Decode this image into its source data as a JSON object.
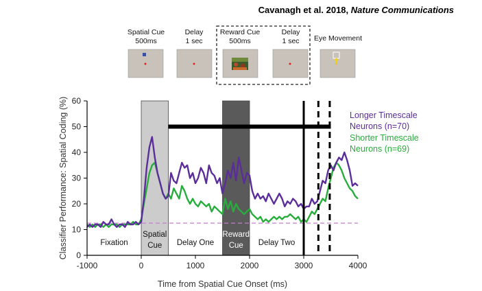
{
  "citation": {
    "authors": "Cavanagh et al. 2018, ",
    "journal": "Nature Communications"
  },
  "task_panels": [
    {
      "line1": "Spatial Cue",
      "line2": "500ms",
      "icon": "blue-square-cue"
    },
    {
      "line1": "Delay",
      "line2": "1 sec",
      "icon": "fixation-dot"
    },
    {
      "line1": "Reward Cue",
      "line2": "500ms",
      "icon": "reward-image"
    },
    {
      "line1": "Delay",
      "line2": "1 sec",
      "icon": "fixation-dot"
    },
    {
      "line1": "Eye Movement",
      "line2": "",
      "icon": "saccade-target"
    }
  ],
  "colors": {
    "longer": "#5b2d9a",
    "shorter": "#27ad3b",
    "chance": "#c77bd1",
    "spatial_cue_box": "#cccccc",
    "reward_cue_box": "#5a5a5a",
    "panel_bg": "#c9c2bb"
  },
  "chart_data": {
    "type": "line",
    "title": "",
    "xlabel": "Time from Spatial Cue Onset (ms)",
    "ylabel": "Classifier Performance: Spatial Coding (%)",
    "xlim": [
      -1000,
      4000
    ],
    "ylim": [
      0,
      60
    ],
    "xticks": [
      -1000,
      0,
      1000,
      2000,
      3000,
      4000
    ],
    "yticks": [
      0,
      10,
      20,
      30,
      40,
      50,
      60
    ],
    "grid": false,
    "legend_position": "top-right",
    "chance_level": 12.5,
    "significance_bar": {
      "x_start": 500,
      "x_end": 3500,
      "y": 50
    },
    "event_lines": [
      {
        "x": 3000,
        "style": "solid"
      },
      {
        "x": 3270,
        "style": "dashed"
      },
      {
        "x": 3480,
        "style": "dashed"
      }
    ],
    "epochs": [
      {
        "label_line1": "Fixation",
        "label_line2": "",
        "x_start": -1000,
        "x_end": 0,
        "shaded": false
      },
      {
        "label_line1": "Spatial",
        "label_line2": "Cue",
        "x_start": 0,
        "x_end": 500,
        "shaded": true
      },
      {
        "label_line1": "Delay One",
        "label_line2": "",
        "x_start": 500,
        "x_end": 1500,
        "shaded": false
      },
      {
        "label_line1": "Reward",
        "label_line2": "Cue",
        "x_start": 1500,
        "x_end": 2000,
        "shaded": true
      },
      {
        "label_line1": "Delay Two",
        "label_line2": "",
        "x_start": 2000,
        "x_end": 3000,
        "shaded": false
      }
    ],
    "series": [
      {
        "name": "Longer Timescale Neurons (n=70)",
        "legend_line1": "Longer Timescale",
        "legend_line2": "Neurons (n=70)",
        "x": [
          -1000,
          -950,
          -900,
          -850,
          -800,
          -750,
          -700,
          -650,
          -600,
          -550,
          -500,
          -450,
          -400,
          -350,
          -300,
          -250,
          -200,
          -150,
          -100,
          -50,
          0,
          50,
          100,
          150,
          200,
          250,
          300,
          350,
          400,
          450,
          500,
          550,
          600,
          650,
          700,
          750,
          800,
          850,
          900,
          950,
          1000,
          1050,
          1100,
          1150,
          1200,
          1250,
          1300,
          1350,
          1400,
          1450,
          1500,
          1550,
          1600,
          1650,
          1700,
          1750,
          1800,
          1850,
          1900,
          1950,
          2000,
          2050,
          2100,
          2150,
          2200,
          2250,
          2300,
          2350,
          2400,
          2450,
          2500,
          2550,
          2600,
          2650,
          2700,
          2750,
          2800,
          2850,
          2900,
          2950,
          3000,
          3050,
          3100,
          3150,
          3200,
          3250,
          3300,
          3350,
          3400,
          3450,
          3500,
          3550,
          3600,
          3650,
          3700,
          3750,
          3800,
          3850,
          3900,
          3950,
          4000
        ],
        "values": [
          11,
          12,
          11,
          12,
          12,
          11,
          13,
          12,
          12,
          14,
          12,
          11,
          12,
          12,
          11,
          13,
          12,
          12,
          13,
          12,
          13,
          22,
          34,
          42,
          46,
          38,
          32,
          28,
          24,
          22,
          23,
          32,
          29,
          28,
          32,
          36,
          34,
          35,
          30,
          32,
          28,
          30,
          34,
          32,
          28,
          35,
          32,
          31,
          28,
          30,
          24,
          28,
          33,
          30,
          36,
          29,
          38,
          33,
          28,
          32,
          31,
          25,
          22,
          24,
          22,
          23,
          21,
          24,
          22,
          20,
          22,
          24,
          22,
          19,
          21,
          20,
          22,
          21,
          19,
          20,
          18,
          19,
          19,
          22,
          20,
          21,
          25,
          29,
          28,
          33,
          35,
          33,
          36,
          38,
          37,
          40,
          37,
          33,
          27,
          28,
          27
        ]
      },
      {
        "name": "Shorter Timescale Neurons (n=69)",
        "legend_line1": "Shorter Timescale",
        "legend_line2": "Neurons (n=69)",
        "x": [
          -1000,
          -950,
          -900,
          -850,
          -800,
          -750,
          -700,
          -650,
          -600,
          -550,
          -500,
          -450,
          -400,
          -350,
          -300,
          -250,
          -200,
          -150,
          -100,
          -50,
          0,
          50,
          100,
          150,
          200,
          250,
          300,
          350,
          400,
          450,
          500,
          550,
          600,
          650,
          700,
          750,
          800,
          850,
          900,
          950,
          1000,
          1050,
          1100,
          1150,
          1200,
          1250,
          1300,
          1350,
          1400,
          1450,
          1500,
          1550,
          1600,
          1650,
          1700,
          1750,
          1800,
          1850,
          1900,
          1950,
          2000,
          2050,
          2100,
          2150,
          2200,
          2250,
          2300,
          2350,
          2400,
          2450,
          2500,
          2550,
          2600,
          2650,
          2700,
          2750,
          2800,
          2850,
          2900,
          2950,
          3000,
          3050,
          3100,
          3150,
          3200,
          3250,
          3300,
          3350,
          3400,
          3450,
          3500,
          3550,
          3600,
          3650,
          3700,
          3750,
          3800,
          3850,
          3900,
          3950,
          4000
        ],
        "values": [
          12,
          11,
          12,
          11,
          12,
          12,
          11,
          12,
          11,
          12,
          12,
          12,
          11,
          12,
          12,
          12,
          12,
          13,
          12,
          12,
          14,
          20,
          26,
          32,
          35,
          36,
          32,
          28,
          24,
          22,
          24,
          22,
          26,
          24,
          22,
          27,
          25,
          22,
          20,
          22,
          20,
          19,
          21,
          20,
          19,
          20,
          17,
          19,
          18,
          17,
          16,
          22,
          18,
          21,
          17,
          20,
          18,
          17,
          16,
          17,
          18,
          16,
          15,
          14,
          15,
          13,
          14,
          13,
          14,
          15,
          14,
          15,
          14,
          15,
          15,
          16,
          15,
          14,
          15,
          13,
          14,
          13,
          15,
          17,
          16,
          18,
          20,
          22,
          21,
          26,
          30,
          34,
          36,
          35,
          33,
          30,
          28,
          26,
          25,
          23,
          22
        ]
      }
    ]
  }
}
